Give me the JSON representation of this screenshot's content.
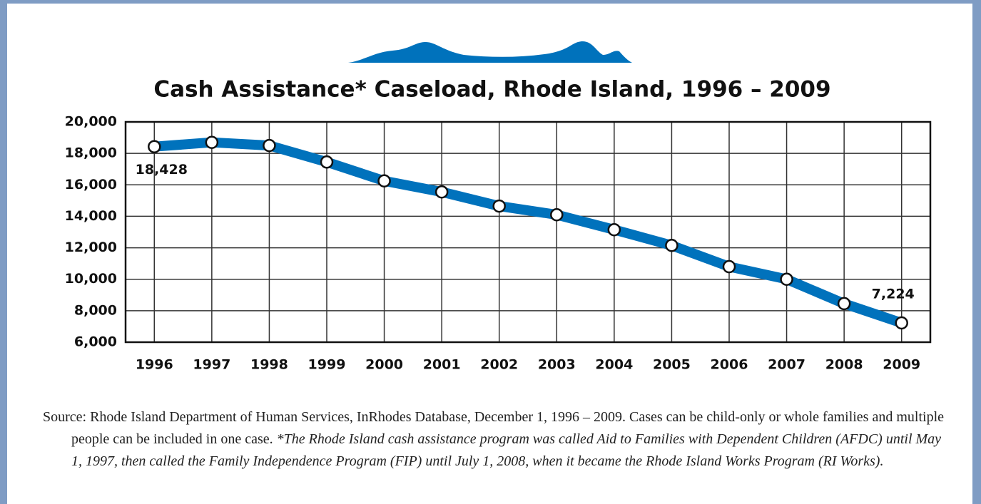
{
  "chart_data": {
    "type": "line",
    "title": "Cash Assistance* Caseload, Rhode Island, 1996 – 2009",
    "categories": [
      "1996",
      "1997",
      "1998",
      "1999",
      "2000",
      "2001",
      "2002",
      "2003",
      "2004",
      "2005",
      "2006",
      "2007",
      "2008",
      "2009"
    ],
    "values": [
      18428,
      18700,
      18500,
      17450,
      16250,
      15550,
      14650,
      14100,
      13150,
      12150,
      10800,
      10000,
      8450,
      7224
    ],
    "value_labels": [
      "18,428",
      null,
      null,
      null,
      null,
      null,
      null,
      null,
      null,
      null,
      null,
      null,
      null,
      "7,224"
    ],
    "color": "#0072bc",
    "ylim": [
      6000,
      20000
    ],
    "yticks": [
      {
        "value": 6000,
        "label": "6,000"
      },
      {
        "value": 8000,
        "label": "8,000"
      },
      {
        "value": 10000,
        "label": "10,000"
      },
      {
        "value": 12000,
        "label": "12,000"
      },
      {
        "value": 14000,
        "label": "14,000"
      },
      {
        "value": 16000,
        "label": "16,000"
      },
      {
        "value": 18000,
        "label": "18,000"
      },
      {
        "value": 20000,
        "label": "20,000"
      }
    ],
    "grid": true,
    "source": "Source: Rhode Island Department of Human Services, InRhodes Database, December 1, 1996 – 2009. Cases can be child-only or whole families and multiple people can be included in one case.",
    "footnote": "*The Rhode Island cash assistance program was called Aid to Families with Dependent Children (AFDC) until May 1, 1997, then called the Family Independence Program (FIP) until July 1, 2008, when it became the Rhode Island Works Program (RI Works)."
  }
}
